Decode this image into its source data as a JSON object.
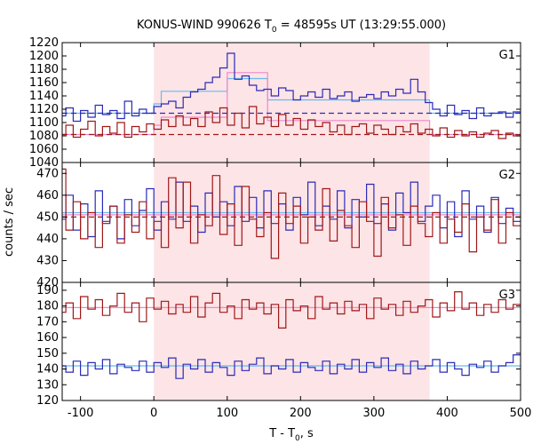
{
  "chart_data": {
    "type": "line",
    "title": {
      "main": "KONUS-WIND 990626 T",
      "sub": "0",
      "rest": " = 48595s UT (13:29:55.000)"
    },
    "xlabel": {
      "main": "T - T",
      "sub": "0",
      "rest": ", s"
    },
    "ylabel": "counts / sec",
    "xlim": [
      -125,
      500
    ],
    "xticks": [
      -100,
      0,
      100,
      200,
      300,
      400,
      500
    ],
    "highlight_interval": [
      0,
      376
    ],
    "colors": {
      "blue": "#2b2bb8",
      "red": "#a01818",
      "cyan": "#66bbee",
      "pink": "#ee88cc",
      "shade": "#fde4e6"
    },
    "panels": [
      {
        "label": "G1",
        "ylim": [
          1040,
          1220
        ],
        "yticks": [
          1040,
          1060,
          1080,
          1100,
          1120,
          1140,
          1160,
          1180,
          1200,
          1220
        ],
        "series": [
          {
            "color": "blue",
            "x": [
              -125,
              -115,
              -105,
              -95,
              -85,
              -75,
              -65,
              -55,
              -45,
              -35,
              -25,
              -15,
              -5,
              5,
              15,
              25,
              35,
              45,
              55,
              65,
              75,
              85,
              95,
              105,
              115,
              125,
              135,
              145,
              155,
              165,
              175,
              185,
              195,
              205,
              215,
              225,
              235,
              245,
              255,
              265,
              275,
              285,
              295,
              305,
              315,
              325,
              335,
              345,
              355,
              365,
              375,
              385,
              395,
              405,
              415,
              425,
              435,
              445,
              455,
              465,
              475,
              485,
              495
            ],
            "values": [
              1110,
              1122,
              1102,
              1118,
              1108,
              1126,
              1112,
              1118,
              1106,
              1132,
              1110,
              1120,
              1114,
              1124,
              1128,
              1132,
              1122,
              1138,
              1146,
              1150,
              1160,
              1168,
              1182,
              1204,
              1165,
              1170,
              1156,
              1148,
              1150,
              1140,
              1152,
              1148,
              1134,
              1140,
              1146,
              1138,
              1150,
              1136,
              1140,
              1146,
              1132,
              1138,
              1142,
              1136,
              1146,
              1140,
              1150,
              1144,
              1165,
              1146,
              1130,
              1120,
              1110,
              1126,
              1112,
              1118,
              1106,
              1122,
              1110,
              1114,
              1116,
              1108,
              1116
            ]
          },
          {
            "color": "red",
            "x": [
              -125,
              -115,
              -105,
              -95,
              -85,
              -75,
              -65,
              -55,
              -45,
              -35,
              -25,
              -15,
              -5,
              5,
              15,
              25,
              35,
              45,
              55,
              65,
              75,
              85,
              95,
              105,
              115,
              125,
              135,
              145,
              155,
              165,
              175,
              185,
              195,
              205,
              215,
              225,
              235,
              245,
              255,
              265,
              275,
              285,
              295,
              305,
              315,
              325,
              335,
              345,
              355,
              365,
              375,
              385,
              395,
              405,
              415,
              425,
              435,
              445,
              455,
              465,
              475,
              485,
              495
            ],
            "values": [
              1082,
              1096,
              1078,
              1090,
              1102,
              1080,
              1094,
              1084,
              1100,
              1078,
              1094,
              1086,
              1098,
              1090,
              1104,
              1094,
              1110,
              1096,
              1106,
              1094,
              1116,
              1100,
              1122,
              1096,
              1114,
              1092,
              1124,
              1098,
              1108,
              1094,
              1112,
              1096,
              1106,
              1090,
              1104,
              1094,
              1100,
              1086,
              1096,
              1082,
              1094,
              1098,
              1084,
              1096,
              1090,
              1082,
              1094,
              1086,
              1098,
              1084,
              1090,
              1080,
              1092,
              1078,
              1088,
              1080,
              1086,
              1078,
              1084,
              1088,
              1076,
              1084,
              1080
            ]
          }
        ],
        "fits": [
          {
            "color": "cyan",
            "dashed": false,
            "steps": [
              [
                -125,
                0,
                1114
              ],
              [
                0,
                10,
                1128
              ],
              [
                10,
                100,
                1147
              ],
              [
                100,
                155,
                1166
              ],
              [
                155,
                376,
                1134
              ],
              [
                376,
                500,
                1114
              ]
            ]
          },
          {
            "color": "pink",
            "dashed": false,
            "steps": [
              [
                -125,
                0,
                1082
              ],
              [
                0,
                10,
                1096
              ],
              [
                10,
                100,
                1108
              ],
              [
                100,
                155,
                1175
              ],
              [
                155,
                376,
                1103
              ],
              [
                376,
                500,
                1082
              ]
            ]
          },
          {
            "color": "blue",
            "dashed": true,
            "steps": [
              [
                -125,
                500,
                1114
              ]
            ]
          },
          {
            "color": "red",
            "dashed": true,
            "steps": [
              [
                -125,
                500,
                1082
              ]
            ]
          }
        ]
      },
      {
        "label": "G2",
        "ylim": [
          420,
          475
        ],
        "yticks": [
          420,
          430,
          440,
          450,
          460,
          470
        ],
        "series": [
          {
            "color": "blue",
            "x": [
              -125,
              -115,
              -105,
              -95,
              -85,
              -75,
              -65,
              -55,
              -45,
              -35,
              -25,
              -15,
              -5,
              5,
              15,
              25,
              35,
              45,
              55,
              65,
              75,
              85,
              95,
              105,
              115,
              125,
              135,
              145,
              155,
              165,
              175,
              185,
              195,
              205,
              215,
              225,
              235,
              245,
              255,
              265,
              275,
              285,
              295,
              305,
              315,
              325,
              335,
              345,
              355,
              365,
              375,
              385,
              395,
              405,
              415,
              425,
              435,
              445,
              455,
              465,
              475,
              485,
              495
            ],
            "values": [
              449,
              460,
              444,
              456,
              441,
              462,
              447,
              455,
              440,
              458,
              446,
              453,
              463,
              444,
              457,
              449,
              466,
              448,
              455,
              443,
              461,
              450,
              457,
              446,
              464,
              448,
              459,
              445,
              462,
              447,
              456,
              444,
              459,
              451,
              466,
              446,
              455,
              449,
              462,
              445,
              458,
              450,
              465,
              447,
              456,
              444,
              461,
              452,
              466,
              448,
              455,
              460,
              445,
              457,
              441,
              462,
              449,
              455,
              443,
              459,
              447,
              454,
              448
            ]
          },
          {
            "color": "red",
            "x": [
              -125,
              -115,
              -105,
              -95,
              -85,
              -75,
              -65,
              -55,
              -45,
              -35,
              -25,
              -15,
              -5,
              5,
              15,
              25,
              35,
              45,
              55,
              65,
              75,
              85,
              95,
              105,
              115,
              125,
              135,
              145,
              155,
              165,
              175,
              185,
              195,
              205,
              215,
              225,
              235,
              245,
              255,
              265,
              275,
              285,
              295,
              305,
              315,
              325,
              335,
              345,
              355,
              365,
              375,
              385,
              395,
              405,
              415,
              425,
              435,
              445,
              455,
              465,
              475,
              485,
              495
            ],
            "values": [
              472,
              444,
              457,
              440,
              452,
              436,
              448,
              455,
              438,
              451,
              443,
              457,
              440,
              448,
              436,
              468,
              445,
              466,
              438,
              451,
              446,
              469,
              442,
              456,
              437,
              464,
              449,
              441,
              452,
              431,
              461,
              447,
              455,
              438,
              450,
              444,
              463,
              439,
              453,
              446,
              436,
              457,
              448,
              432,
              459,
              445,
              451,
              437,
              455,
              447,
              441,
              452,
              438,
              449,
              443,
              456,
              434,
              450,
              444,
              458,
              438,
              452,
              446
            ]
          }
        ],
        "fits": [
          {
            "color": "cyan",
            "dashed": false,
            "steps": [
              [
                -125,
                500,
                452
              ]
            ]
          },
          {
            "color": "pink",
            "dashed": false,
            "steps": [
              [
                -125,
                500,
                451
              ]
            ]
          },
          {
            "color": "red",
            "dashed": true,
            "steps": [
              [
                -125,
                500,
                450
              ]
            ]
          }
        ]
      },
      {
        "label": "G3",
        "ylim": [
          120,
          195
        ],
        "yticks": [
          120,
          130,
          140,
          150,
          160,
          170,
          180,
          190
        ],
        "series": [
          {
            "color": "red",
            "x": [
              -125,
              -115,
              -105,
              -95,
              -85,
              -75,
              -65,
              -55,
              -45,
              -35,
              -25,
              -15,
              -5,
              5,
              15,
              25,
              35,
              45,
              55,
              65,
              75,
              85,
              95,
              105,
              115,
              125,
              135,
              145,
              155,
              165,
              175,
              185,
              195,
              205,
              215,
              225,
              235,
              245,
              255,
              265,
              275,
              285,
              295,
              305,
              315,
              325,
              335,
              345,
              355,
              365,
              375,
              385,
              395,
              405,
              415,
              425,
              435,
              445,
              455,
              465,
              475,
              485,
              495
            ],
            "values": [
              176,
              182,
              172,
              186,
              178,
              184,
              174,
              180,
              188,
              176,
              182,
              170,
              185,
              178,
              183,
              175,
              181,
              176,
              186,
              173,
              182,
              188,
              176,
              180,
              172,
              184,
              178,
              182,
              175,
              181,
              166,
              184,
              177,
              180,
              172,
              186,
              178,
              182,
              175,
              183,
              177,
              181,
              172,
              185,
              178,
              181,
              174,
              183,
              176,
              180,
              184,
              173,
              182,
              177,
              189,
              178,
              182,
              174,
              181,
              176,
              184,
              178,
              181
            ]
          },
          {
            "color": "blue",
            "x": [
              -125,
              -115,
              -105,
              -95,
              -85,
              -75,
              -65,
              -55,
              -45,
              -35,
              -25,
              -15,
              -5,
              5,
              15,
              25,
              35,
              45,
              55,
              65,
              75,
              85,
              95,
              105,
              115,
              125,
              135,
              145,
              155,
              165,
              175,
              185,
              195,
              205,
              215,
              225,
              235,
              245,
              255,
              265,
              275,
              285,
              295,
              305,
              315,
              325,
              335,
              345,
              355,
              365,
              375,
              385,
              395,
              405,
              415,
              425,
              435,
              445,
              455,
              465,
              475,
              485,
              495
            ],
            "values": [
              142,
              138,
              145,
              136,
              144,
              140,
              146,
              137,
              143,
              141,
              139,
              145,
              138,
              144,
              141,
              147,
              134,
              143,
              140,
              146,
              138,
              144,
              141,
              136,
              145,
              139,
              143,
              147,
              137,
              142,
              140,
              146,
              138,
              144,
              141,
              139,
              145,
              137,
              143,
              140,
              146,
              138,
              144,
              141,
              147,
              139,
              143,
              137,
              145,
              140,
              142,
              146,
              138,
              144,
              140,
              136,
              143,
              141,
              145,
              138,
              142,
              144,
              149
            ]
          }
        ],
        "fits": [
          {
            "color": "pink",
            "dashed": false,
            "steps": [
              [
                -125,
                500,
                179
              ]
            ]
          },
          {
            "color": "cyan",
            "dashed": false,
            "steps": [
              [
                -125,
                500,
                142
              ]
            ]
          }
        ]
      }
    ]
  }
}
